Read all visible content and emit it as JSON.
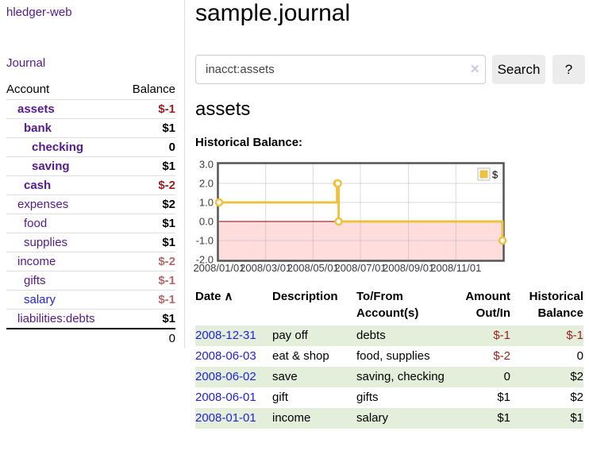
{
  "app": {
    "title": "hledger-web"
  },
  "sidebar": {
    "journal_link": "Journal",
    "accounts_table": {
      "headers": {
        "account": "Account",
        "balance": "Balance"
      },
      "rows": [
        {
          "account": "assets",
          "depth": 1,
          "link_style": "purple-bold",
          "balance": "$-1",
          "balance_style": "neg-strong"
        },
        {
          "account": "bank",
          "depth": 2,
          "link_style": "purple-bold",
          "balance": "$1",
          "balance_style": ""
        },
        {
          "account": "checking",
          "depth": 3,
          "link_style": "purple-bold",
          "balance": "0",
          "balance_style": ""
        },
        {
          "account": "saving",
          "depth": 3,
          "link_style": "purple-bold",
          "balance": "$1",
          "balance_style": ""
        },
        {
          "account": "cash",
          "depth": 2,
          "link_style": "purple-bold",
          "balance": "$-2",
          "balance_style": "neg-strong"
        },
        {
          "account": "expenses",
          "depth": 1,
          "link_style": "purple",
          "balance": "$2",
          "balance_style": ""
        },
        {
          "account": "food",
          "depth": 2,
          "link_style": "purple",
          "balance": "$1",
          "balance_style": ""
        },
        {
          "account": "supplies",
          "depth": 2,
          "link_style": "purple",
          "balance": "$1",
          "balance_style": ""
        },
        {
          "account": "income",
          "depth": 1,
          "link_style": "purple",
          "balance": "$-2",
          "balance_style": "neg-weak"
        },
        {
          "account": "gifts",
          "depth": 2,
          "link_style": "purple",
          "balance": "$-1",
          "balance_style": "neg-weak"
        },
        {
          "account": "salary",
          "depth": 2,
          "link_style": "blue",
          "balance": "$-1",
          "balance_style": "neg-weak"
        },
        {
          "account": "liabilities:debts",
          "depth": 1,
          "link_style": "purple",
          "balance": "$1",
          "balance_style": ""
        }
      ],
      "total": "0"
    }
  },
  "main": {
    "title": "sample.journal",
    "search": {
      "query": "inacct:assets",
      "clear_icon": "✕",
      "search_button": "Search",
      "help_button": "?"
    },
    "account_heading": "assets",
    "chart_label": "Historical Balance:"
  },
  "chart_data": {
    "type": "line",
    "step": true,
    "title": "Historical Balance",
    "series": [
      {
        "name": "$",
        "color": "#edc240",
        "points": [
          [
            "2008-01-01",
            1
          ],
          [
            "2008-06-01",
            2
          ],
          [
            "2008-06-02",
            2
          ],
          [
            "2008-06-03",
            0
          ],
          [
            "2008-12-31",
            -1
          ]
        ]
      }
    ],
    "x_ticks": [
      "2008/01/01",
      "2008/03/01",
      "2008/05/01",
      "2008/07/01",
      "2008/09/01",
      "2008/11/01"
    ],
    "y_ticks": [
      "3.0",
      "2.0",
      "1.0",
      "0.0",
      "-1.0",
      "-2.0"
    ],
    "xlim": [
      "2008-01-01",
      "2008-12-31"
    ],
    "ylim": [
      -2,
      3
    ],
    "grid": true,
    "legend": {
      "label": "$",
      "position": "top-right"
    },
    "negative_region_color": "#ffdddd",
    "zero_line_color": "#8b0000"
  },
  "register": {
    "columns": [
      "Date",
      "Description",
      "To/From Account(s)",
      "Amount Out/In",
      "Historical Balance"
    ],
    "sort_indicator": "∧",
    "rows": [
      {
        "date": "2008-12-31",
        "description": "pay off",
        "accounts": "debts",
        "amount": "$-1",
        "amount_negative": true,
        "balance": "$-1",
        "balance_negative": true
      },
      {
        "date": "2008-06-03",
        "description": "eat & shop",
        "accounts": "food, supplies",
        "amount": "$-2",
        "amount_negative": true,
        "balance": "0",
        "balance_negative": false
      },
      {
        "date": "2008-06-02",
        "description": "save",
        "accounts": "saving, checking",
        "amount": "0",
        "amount_negative": false,
        "balance": "$2",
        "balance_negative": false
      },
      {
        "date": "2008-06-01",
        "description": "gift",
        "accounts": "gifts",
        "amount": "$1",
        "amount_negative": false,
        "balance": "$2",
        "balance_negative": false
      },
      {
        "date": "2008-01-01",
        "description": "income",
        "accounts": "salary",
        "amount": "$1",
        "amount_negative": false,
        "balance": "$1",
        "balance_negative": false
      }
    ]
  },
  "colors": {
    "link_purple": "#551A8B",
    "link_blue": "#2222d8",
    "negative_strong": "#9c1f1f",
    "negative_weak": "#b56a6a",
    "row_green": "#e3efda",
    "series_yellow": "#edc240"
  }
}
